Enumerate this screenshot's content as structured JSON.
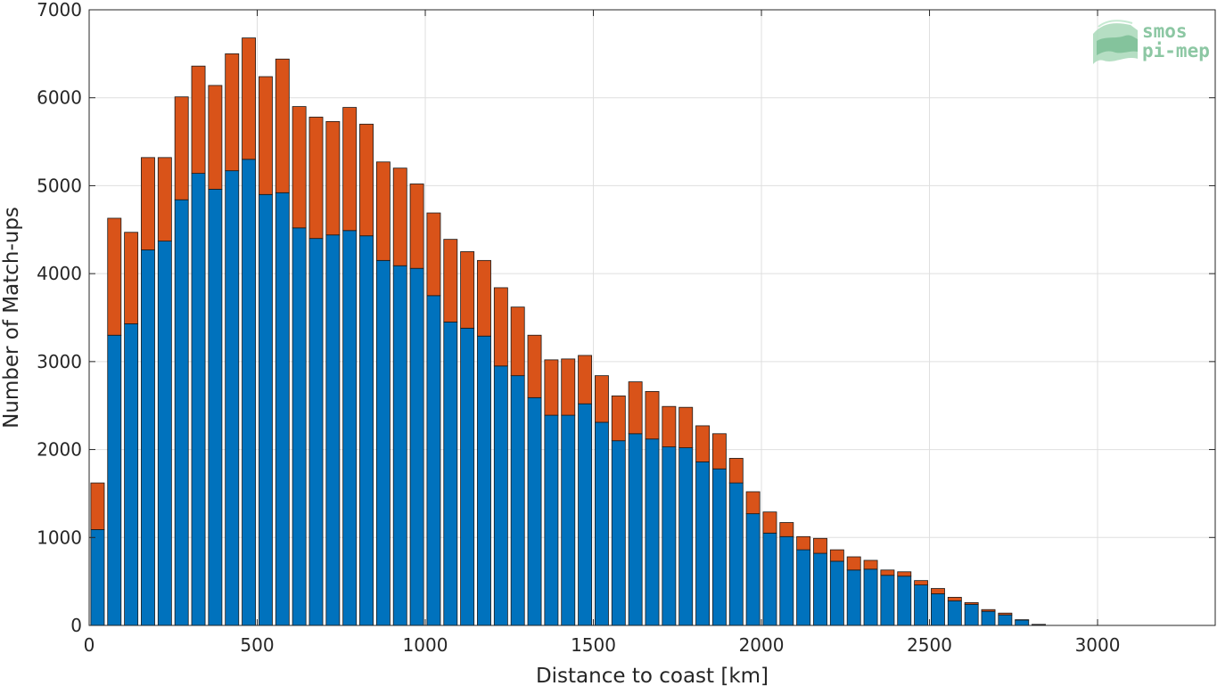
{
  "chart_data": {
    "type": "bar",
    "stacked": true,
    "title": "",
    "xlabel": "Distance to coast [km]",
    "ylabel": "Number of Match-ups",
    "xlim": [
      0,
      3350
    ],
    "ylim": [
      0,
      7000
    ],
    "xticks": [
      0,
      500,
      1000,
      1500,
      2000,
      2500,
      3000
    ],
    "yticks": [
      0,
      1000,
      2000,
      3000,
      4000,
      5000,
      6000,
      7000
    ],
    "grid": true,
    "bin_width_km": 50,
    "x": [
      25,
      75,
      125,
      175,
      225,
      275,
      325,
      375,
      425,
      475,
      525,
      575,
      625,
      675,
      725,
      775,
      825,
      875,
      925,
      975,
      1025,
      1075,
      1125,
      1175,
      1225,
      1275,
      1325,
      1375,
      1425,
      1475,
      1525,
      1575,
      1625,
      1675,
      1725,
      1775,
      1825,
      1875,
      1925,
      1975,
      2025,
      2075,
      2125,
      2175,
      2225,
      2275,
      2325,
      2375,
      2425,
      2475,
      2525,
      2575,
      2625,
      2675,
      2725,
      2775,
      2825
    ],
    "series": [
      {
        "color": "#0072bd",
        "values": [
          1090,
          3300,
          3430,
          4270,
          4370,
          4840,
          5140,
          4960,
          5170,
          5300,
          4900,
          4920,
          4520,
          4400,
          4440,
          4490,
          4430,
          4150,
          4090,
          4060,
          3750,
          3450,
          3380,
          3290,
          2950,
          2840,
          2590,
          2390,
          2390,
          2520,
          2310,
          2100,
          2180,
          2120,
          2030,
          2020,
          1860,
          1780,
          1620,
          1270,
          1050,
          1010,
          860,
          820,
          730,
          630,
          640,
          570,
          560,
          460,
          360,
          280,
          240,
          160,
          120,
          60,
          10
        ]
      },
      {
        "color": "#d95319",
        "values": [
          530,
          1330,
          1040,
          1050,
          950,
          1170,
          1220,
          1180,
          1330,
          1380,
          1340,
          1520,
          1380,
          1380,
          1290,
          1400,
          1270,
          1120,
          1110,
          960,
          940,
          940,
          870,
          860,
          890,
          780,
          710,
          630,
          640,
          550,
          530,
          510,
          590,
          540,
          460,
          460,
          410,
          400,
          280,
          250,
          240,
          160,
          150,
          170,
          130,
          150,
          100,
          60,
          50,
          50,
          60,
          40,
          20,
          20,
          20,
          5,
          2
        ]
      }
    ]
  },
  "logo": {
    "line1": "smos",
    "line2": "pi-mep",
    "color": "#8cc7a3"
  }
}
